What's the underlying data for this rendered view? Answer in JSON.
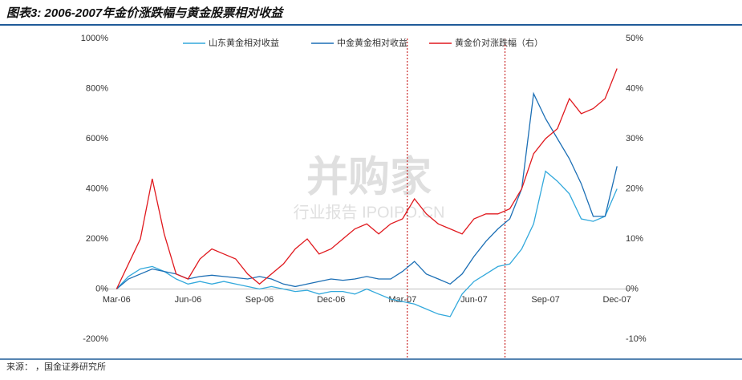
{
  "title": "图表3: 2006-2007年金价涨跌幅与黄金股票相对收益",
  "source": "来源：  ，国金证券研究所",
  "watermark": [
    "并购家",
    "行业报告 IPOIPO.CN"
  ],
  "chart_data": {
    "type": "line",
    "x": [
      0,
      0.5,
      1,
      1.5,
      2,
      2.5,
      3,
      3.5,
      4,
      4.5,
      5,
      5.5,
      6,
      6.5,
      7,
      7.5,
      8,
      8.5,
      9,
      9.5,
      10,
      10.5,
      11,
      11.5,
      12,
      12.5,
      13,
      13.5,
      14,
      14.5,
      15,
      15.5,
      16,
      16.5,
      17,
      17.5,
      18,
      18.5,
      19,
      19.5,
      20,
      20.5,
      21
    ],
    "xlim": [
      -0.75,
      21.7
    ],
    "xticks": [
      {
        "value": 0,
        "label": "Mar-06"
      },
      {
        "value": 3,
        "label": "Jun-06"
      },
      {
        "value": 6,
        "label": "Sep-06"
      },
      {
        "value": 9,
        "label": "Dec-06"
      },
      {
        "value": 12,
        "label": "Mar-07"
      },
      {
        "value": 15,
        "label": "Jun-07"
      },
      {
        "value": 18,
        "label": "Sep-07"
      },
      {
        "value": 21,
        "label": "Dec-07"
      }
    ],
    "ylim": [
      -200,
      1000
    ],
    "yticks": [
      {
        "value": -200,
        "label": "-200%"
      },
      {
        "value": 0,
        "label": "0%"
      },
      {
        "value": 200,
        "label": "200%"
      },
      {
        "value": 400,
        "label": "400%"
      },
      {
        "value": 600,
        "label": "600%"
      },
      {
        "value": 800,
        "label": "800%"
      },
      {
        "value": 1000,
        "label": "1000%"
      }
    ],
    "y2lim": [
      -10,
      50
    ],
    "y2ticks": [
      {
        "value": -10,
        "label": "-10%"
      },
      {
        "value": 0,
        "label": "0%"
      },
      {
        "value": 10,
        "label": "10%"
      },
      {
        "value": 20,
        "label": "20%"
      },
      {
        "value": 30,
        "label": "30%"
      },
      {
        "value": 40,
        "label": "40%"
      },
      {
        "value": 50,
        "label": "50%"
      }
    ],
    "grid": false,
    "vertical_lines": [
      12.2,
      16.3
    ],
    "vertical_line_color": "#c00000",
    "series": [
      {
        "name": "山东黄金相对收益",
        "color": "#33a9dc",
        "values": [
          0,
          50,
          80,
          90,
          70,
          40,
          20,
          30,
          20,
          30,
          20,
          10,
          0,
          10,
          0,
          -10,
          -5,
          -20,
          -10,
          -10,
          -20,
          0,
          -20,
          -40,
          -50,
          -60,
          -80,
          -100,
          -110,
          -20,
          30,
          60,
          90,
          100,
          160,
          260,
          470,
          430,
          380,
          280,
          270,
          290,
          400
        ]
      },
      {
        "name": "中金黄金相对收益",
        "color": "#1c6fb5",
        "values": [
          0,
          40,
          60,
          80,
          70,
          60,
          40,
          50,
          55,
          50,
          45,
          40,
          50,
          40,
          20,
          10,
          20,
          30,
          40,
          35,
          40,
          50,
          40,
          40,
          70,
          110,
          60,
          40,
          20,
          60,
          130,
          190,
          240,
          280,
          400,
          780,
          680,
          600,
          520,
          420,
          290,
          290,
          490
        ]
      },
      {
        "name": "黄金价对涨跌幅（右）",
        "color": "#e0191e",
        "axis": "y2",
        "values": [
          0,
          5,
          10,
          22,
          11,
          3,
          2,
          6,
          8,
          7,
          6,
          3,
          1,
          3,
          5,
          8,
          10,
          7,
          8,
          10,
          12,
          13,
          11,
          13,
          14,
          18,
          15,
          13,
          12,
          11,
          14,
          15,
          15,
          16,
          20,
          27,
          30,
          32,
          38,
          35,
          36,
          38,
          44
        ]
      }
    ]
  }
}
